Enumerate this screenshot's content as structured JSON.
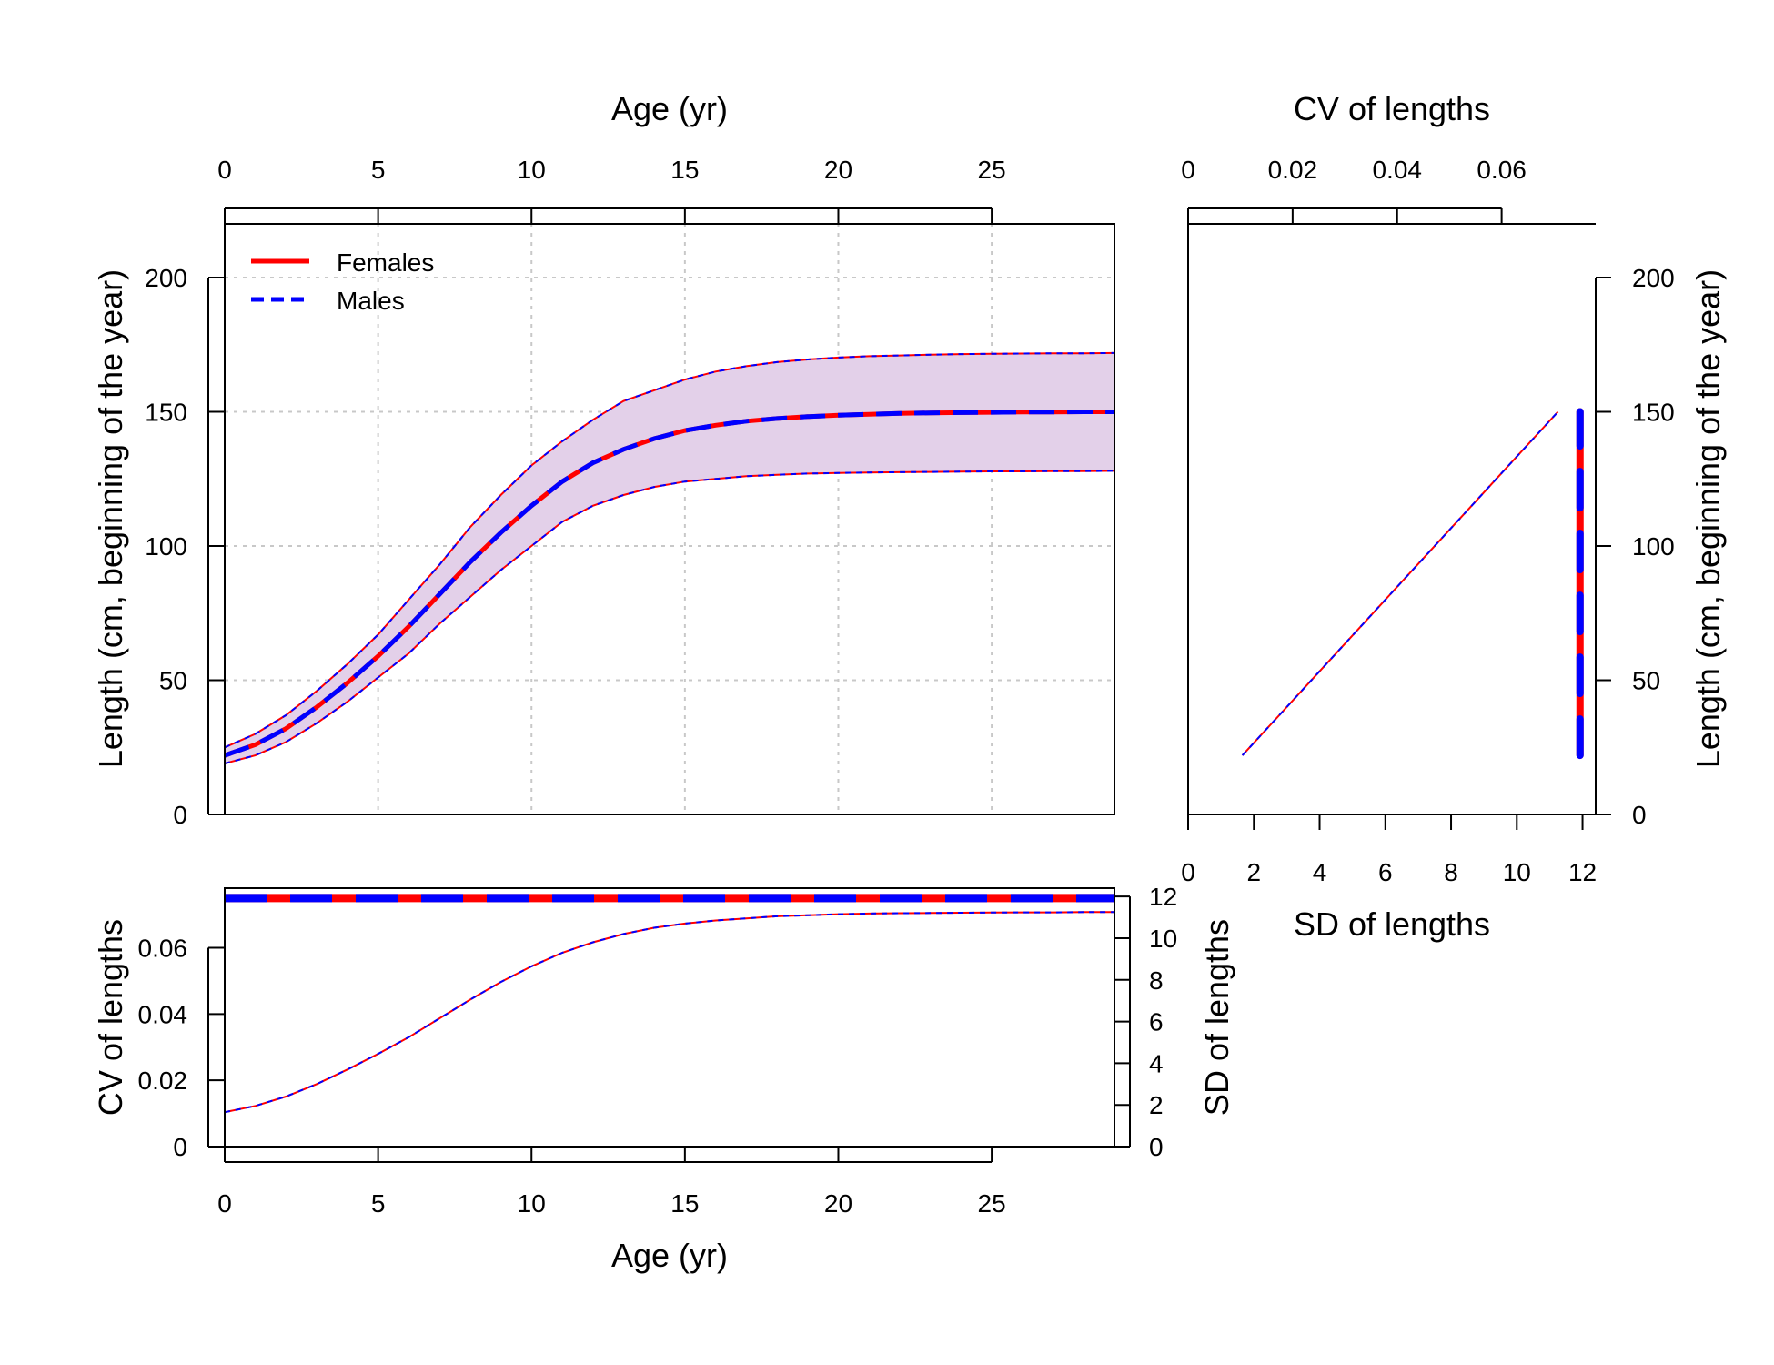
{
  "colors": {
    "females": "#ff0000",
    "males": "#0000ff",
    "band": "#e3d0e9",
    "grid": "#c8c8c8"
  },
  "chart_data": [
    {
      "id": "growth",
      "type": "line",
      "xlabel": "Age (yr)",
      "ylabel": "Length (cm, beginning of the year)",
      "xlim": [
        0,
        29
      ],
      "ylim": [
        0,
        220
      ],
      "xticks": [
        0,
        5,
        10,
        15,
        20,
        25
      ],
      "yticks": [
        0,
        50,
        100,
        150,
        200
      ],
      "grid": true,
      "legend_position": "top-left",
      "legend": [
        "Females",
        "Males"
      ],
      "x": [
        0,
        1,
        2,
        3,
        4,
        5,
        6,
        7,
        8,
        9,
        10,
        11,
        12,
        13,
        14,
        15,
        16,
        17,
        18,
        19,
        20,
        21,
        22,
        23,
        24,
        25,
        26,
        27,
        28,
        29
      ],
      "series": [
        {
          "name": "Females",
          "values": [
            22,
            26,
            32,
            40,
            49,
            59,
            70,
            82,
            94,
            105,
            115,
            124,
            131,
            136,
            140,
            143,
            145,
            146.5,
            147.5,
            148.2,
            148.7,
            149.1,
            149.4,
            149.6,
            149.7,
            149.8,
            149.9,
            149.9,
            150,
            150
          ]
        },
        {
          "name": "Males",
          "values": [
            22,
            26,
            32,
            40,
            49,
            59,
            70,
            82,
            94,
            105,
            115,
            124,
            131,
            136,
            140,
            143,
            145,
            146.5,
            147.5,
            148.2,
            148.7,
            149.1,
            149.4,
            149.6,
            149.7,
            149.8,
            149.9,
            149.9,
            150,
            150
          ]
        }
      ],
      "band_upper": [
        25,
        30,
        37,
        46,
        56,
        67,
        80,
        93,
        107,
        119,
        130,
        139,
        147,
        154,
        158,
        162,
        165,
        167,
        168.5,
        169.5,
        170.2,
        170.7,
        171,
        171.3,
        171.5,
        171.6,
        171.7,
        171.8,
        171.8,
        171.9
      ],
      "band_lower": [
        19,
        22,
        27,
        34,
        42,
        51,
        60,
        71,
        81,
        91,
        100,
        109,
        115,
        119,
        122,
        124,
        125,
        126,
        126.5,
        127,
        127.2,
        127.4,
        127.5,
        127.6,
        127.7,
        127.8,
        127.8,
        127.9,
        127.9,
        128
      ]
    },
    {
      "id": "cv_sd_vs_length",
      "type": "line",
      "xlabel": "SD of lengths",
      "ylabel": "Length (cm, beginning of the year)",
      "top_axis_label": "CV of lengths",
      "xlim": [
        0,
        12.4
      ],
      "ylim": [
        0,
        220
      ],
      "xticks": [
        0,
        2,
        4,
        6,
        8,
        10,
        12
      ],
      "top_xlim": [
        0,
        0.078
      ],
      "top_xticks": [
        0,
        0.02,
        0.04,
        0.06
      ],
      "top_xtick_labels": [
        "0",
        "0.02",
        "0.04",
        "0.06"
      ],
      "yticks": [
        0,
        50,
        100,
        150,
        200
      ],
      "sd_line": {
        "x": [
          1.65,
          11.25
        ],
        "y": [
          22,
          150
        ]
      },
      "cv_line": {
        "cv": 0.075,
        "y": [
          22,
          150
        ]
      }
    },
    {
      "id": "cv_sd_vs_age",
      "type": "line",
      "xlabel": "Age (yr)",
      "ylabel": "CV of lengths",
      "right_axis_label": "SD of lengths",
      "xlim": [
        0,
        29
      ],
      "xticks": [
        0,
        5,
        10,
        15,
        20,
        25
      ],
      "ylim": [
        0,
        0.078
      ],
      "yticks": [
        0,
        0.02,
        0.04,
        0.06
      ],
      "ytick_labels": [
        "0",
        "0.02",
        "0.04",
        "0.06"
      ],
      "right_ylim": [
        0,
        12.4
      ],
      "right_yticks": [
        0,
        2,
        4,
        6,
        8,
        10,
        12
      ],
      "cv_value": 0.075,
      "x": [
        0,
        1,
        2,
        3,
        4,
        5,
        6,
        7,
        8,
        9,
        10,
        11,
        12,
        13,
        14,
        15,
        16,
        17,
        18,
        19,
        20,
        21,
        22,
        23,
        24,
        25,
        26,
        27,
        28,
        29
      ],
      "sd_values": [
        1.65,
        1.95,
        2.4,
        3.0,
        3.7,
        4.45,
        5.25,
        6.15,
        7.05,
        7.9,
        8.65,
        9.3,
        9.8,
        10.2,
        10.5,
        10.7,
        10.85,
        10.95,
        11.05,
        11.1,
        11.15,
        11.18,
        11.2,
        11.21,
        11.22,
        11.23,
        11.24,
        11.24,
        11.25,
        11.25
      ]
    }
  ]
}
